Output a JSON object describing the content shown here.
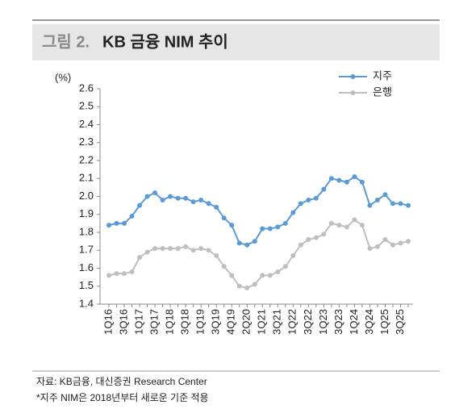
{
  "header": {
    "figure_label": "그림 2.",
    "title": "KB 금융 NIM 추이"
  },
  "chart_data": {
    "type": "line",
    "y_unit": "(%)",
    "categories": [
      "1Q16",
      null,
      "3Q16",
      null,
      "1Q17",
      null,
      "3Q17",
      null,
      "1Q18",
      null,
      "3Q18",
      null,
      "1Q19",
      null,
      "3Q19",
      null,
      "4Q19",
      null,
      "2Q20",
      null,
      "1Q21",
      null,
      "3Q21",
      null,
      "1Q22",
      null,
      "3Q22",
      null,
      "1Q23",
      null,
      "3Q23",
      null,
      "1Q24",
      null,
      "3Q24",
      null,
      "1Q25",
      null,
      "3Q25",
      null
    ],
    "series": [
      {
        "name": "지주",
        "color": "#5b9bd5",
        "values": [
          1.84,
          1.85,
          1.85,
          1.89,
          1.95,
          2.0,
          2.02,
          1.98,
          2.0,
          1.99,
          1.99,
          1.97,
          1.98,
          1.96,
          1.94,
          1.88,
          1.84,
          1.74,
          1.73,
          1.75,
          1.82,
          1.82,
          1.83,
          1.85,
          1.91,
          1.96,
          1.98,
          1.99,
          2.04,
          2.1,
          2.09,
          2.08,
          2.11,
          2.08,
          1.95,
          1.98,
          2.01,
          1.96,
          1.96,
          1.95
        ]
      },
      {
        "name": "은행",
        "color": "#bfbfbf",
        "values": [
          1.56,
          1.57,
          1.57,
          1.58,
          1.66,
          1.69,
          1.71,
          1.71,
          1.71,
          1.71,
          1.72,
          1.7,
          1.71,
          1.7,
          1.67,
          1.61,
          1.56,
          1.5,
          1.49,
          1.51,
          1.56,
          1.56,
          1.58,
          1.61,
          1.67,
          1.73,
          1.76,
          1.77,
          1.79,
          1.85,
          1.84,
          1.83,
          1.87,
          1.84,
          1.71,
          1.72,
          1.76,
          1.73,
          1.74,
          1.75
        ]
      }
    ],
    "ylim": [
      1.4,
      2.6
    ],
    "yticks": [
      1.4,
      1.5,
      1.6,
      1.7,
      1.8,
      1.9,
      {
        "value": 2.0,
        "label": "2.0"
      },
      2.1,
      2.2,
      2.3,
      2.4,
      2.5,
      2.6
    ],
    "legend": "top-right"
  },
  "footer": {
    "source": "자료: KB금융, 대신증권 Research Center",
    "note": "*지주 NIM은 2018년부터 새로운 기준 적용"
  }
}
